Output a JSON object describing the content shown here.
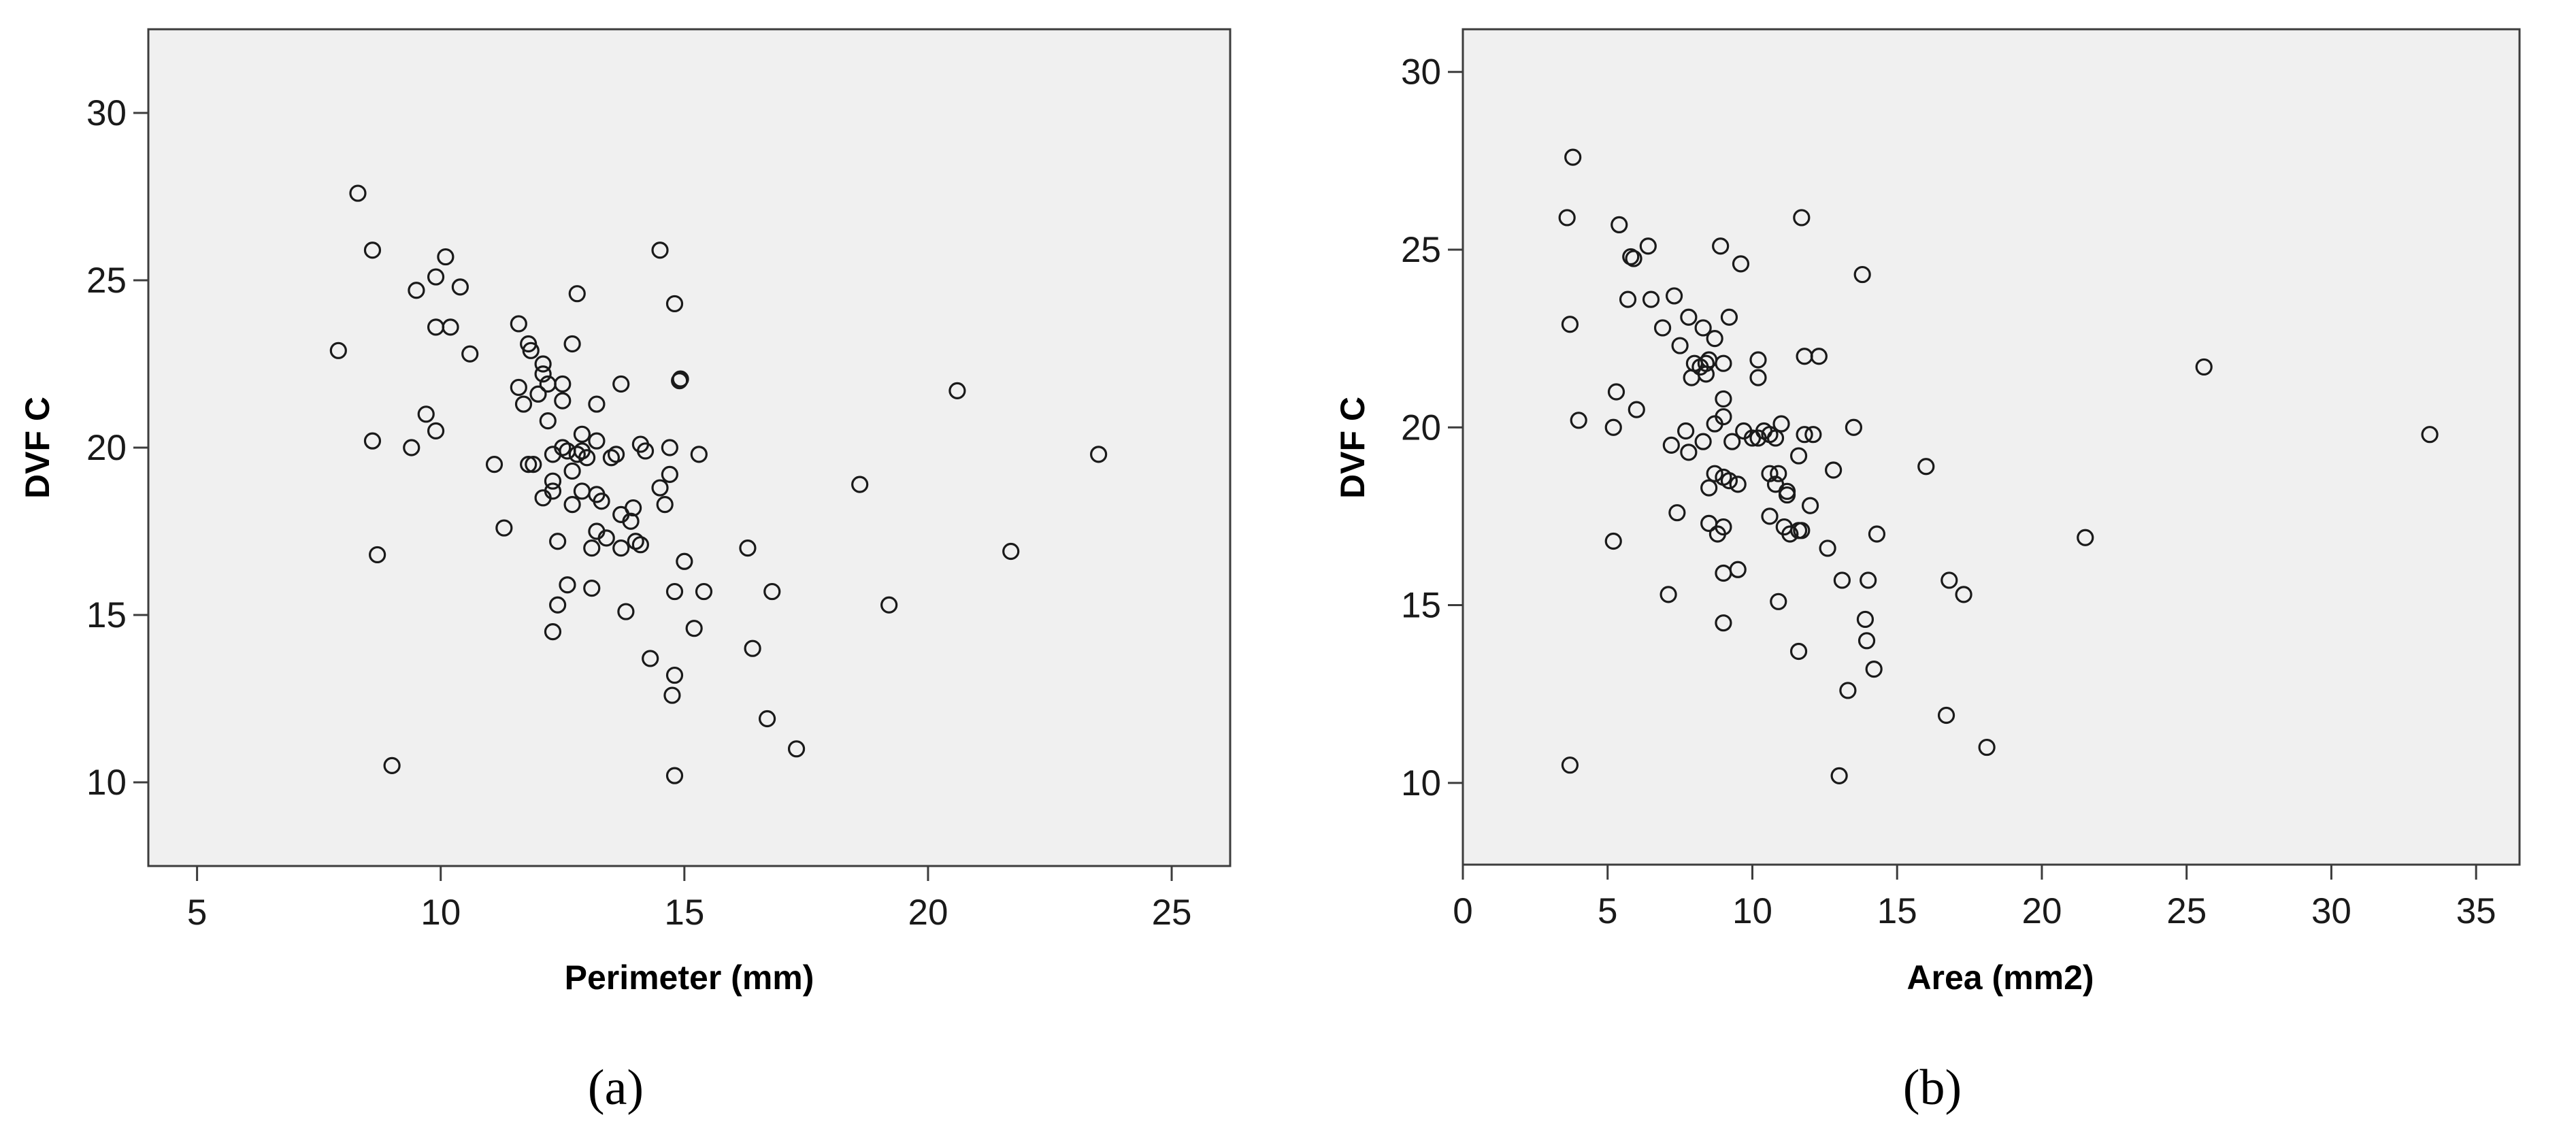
{
  "chart_data": [
    {
      "type": "scatter",
      "panel_label": "(a)",
      "xlabel": "Perimeter (mm)",
      "ylabel": "DVF C",
      "xlim": [
        4,
        26.2
      ],
      "ylim": [
        7.5,
        32.5
      ],
      "xticks": [
        5,
        10,
        15,
        20,
        25
      ],
      "yticks": [
        10,
        15,
        20,
        25,
        30
      ],
      "grid": false,
      "marker": "open circle",
      "colors": {
        "plot_background": "#f0f0f0",
        "marker": "#1a1a1a"
      },
      "points": [
        [
          8.3,
          27.6
        ],
        [
          8.6,
          25.9
        ],
        [
          10.1,
          25.7
        ],
        [
          9.9,
          25.1
        ],
        [
          9.5,
          24.7
        ],
        [
          10.4,
          24.8
        ],
        [
          9.9,
          23.6
        ],
        [
          10.2,
          23.6
        ],
        [
          7.9,
          22.9
        ],
        [
          10.6,
          22.8
        ],
        [
          11.6,
          23.7
        ],
        [
          11.8,
          23.1
        ],
        [
          11.85,
          22.9
        ],
        [
          12.1,
          22.5
        ],
        [
          12.1,
          22.2
        ],
        [
          11.6,
          21.8
        ],
        [
          11.7,
          21.3
        ],
        [
          12.0,
          21.6
        ],
        [
          12.2,
          21.9
        ],
        [
          12.5,
          21.9
        ],
        [
          12.5,
          21.4
        ],
        [
          12.8,
          24.6
        ],
        [
          12.7,
          23.1
        ],
        [
          9.7,
          21.0
        ],
        [
          9.9,
          20.5
        ],
        [
          8.6,
          20.2
        ],
        [
          9.4,
          20.0
        ],
        [
          8.7,
          16.8
        ],
        [
          9.0,
          10.5
        ],
        [
          11.1,
          19.5
        ],
        [
          11.3,
          17.6
        ],
        [
          11.9,
          19.5
        ],
        [
          12.2,
          20.8
        ],
        [
          12.3,
          19.8
        ],
        [
          12.5,
          20.0
        ],
        [
          12.6,
          19.9
        ],
        [
          12.8,
          19.8
        ],
        [
          12.9,
          20.4
        ],
        [
          13.0,
          19.7
        ],
        [
          13.2,
          20.2
        ],
        [
          12.3,
          19.0
        ],
        [
          12.7,
          19.3
        ],
        [
          12.1,
          18.5
        ],
        [
          12.3,
          18.7
        ],
        [
          12.7,
          18.3
        ],
        [
          12.9,
          18.7
        ],
        [
          13.2,
          18.6
        ],
        [
          13.3,
          18.4
        ],
        [
          13.5,
          19.7
        ],
        [
          13.6,
          19.8
        ],
        [
          13.7,
          18.0
        ],
        [
          13.9,
          17.8
        ],
        [
          13.95,
          18.2
        ],
        [
          13.2,
          17.5
        ],
        [
          13.4,
          17.3
        ],
        [
          13.1,
          17.0
        ],
        [
          13.7,
          17.0
        ],
        [
          14.1,
          17.1
        ],
        [
          14.0,
          17.2
        ],
        [
          12.4,
          17.2
        ],
        [
          12.6,
          15.9
        ],
        [
          13.1,
          15.8
        ],
        [
          12.4,
          15.3
        ],
        [
          12.3,
          14.5
        ],
        [
          13.2,
          21.3
        ],
        [
          13.7,
          21.9
        ],
        [
          14.1,
          20.1
        ],
        [
          14.2,
          19.9
        ],
        [
          14.5,
          18.8
        ],
        [
          14.6,
          18.3
        ],
        [
          14.7,
          19.2
        ],
        [
          14.7,
          20.0
        ],
        [
          14.5,
          25.9
        ],
        [
          14.8,
          24.3
        ],
        [
          14.9,
          22.0
        ],
        [
          14.92,
          22.05
        ],
        [
          15.3,
          19.8
        ],
        [
          15.0,
          16.6
        ],
        [
          14.8,
          15.7
        ],
        [
          15.4,
          15.7
        ],
        [
          14.3,
          13.7
        ],
        [
          14.8,
          13.2
        ],
        [
          14.75,
          12.6
        ],
        [
          14.8,
          10.2
        ],
        [
          15.2,
          14.6
        ],
        [
          16.3,
          17.0
        ],
        [
          16.4,
          14.0
        ],
        [
          16.8,
          15.7
        ],
        [
          16.7,
          11.9
        ],
        [
          17.3,
          11.0
        ],
        [
          13.8,
          15.1
        ],
        [
          18.6,
          18.9
        ],
        [
          19.2,
          15.3
        ],
        [
          20.6,
          21.7
        ],
        [
          21.7,
          16.9
        ],
        [
          23.5,
          19.8
        ],
        [
          11.8,
          19.5
        ],
        [
          12.9,
          19.9
        ]
      ]
    },
    {
      "type": "scatter",
      "panel_label": "(b)",
      "xlabel": "Area (mm2)",
      "ylabel": "DVF C",
      "xlim": [
        0,
        36.5
      ],
      "ylim": [
        7.7,
        31.2
      ],
      "xticks": [
        0,
        5,
        10,
        15,
        20,
        25,
        30,
        35
      ],
      "yticks": [
        10,
        15,
        20,
        25,
        30
      ],
      "grid": false,
      "marker": "open circle",
      "colors": {
        "plot_background": "#f0f0f0",
        "marker": "#1a1a1a"
      },
      "points": [
        [
          3.8,
          27.6
        ],
        [
          3.6,
          25.9
        ],
        [
          5.4,
          25.7
        ],
        [
          6.4,
          25.1
        ],
        [
          5.8,
          24.8
        ],
        [
          5.9,
          24.75
        ],
        [
          8.9,
          25.1
        ],
        [
          9.6,
          24.6
        ],
        [
          11.7,
          25.9
        ],
        [
          13.8,
          24.3
        ],
        [
          5.7,
          23.6
        ],
        [
          6.5,
          23.6
        ],
        [
          7.3,
          23.7
        ],
        [
          3.7,
          22.9
        ],
        [
          7.8,
          23.1
        ],
        [
          8.3,
          22.8
        ],
        [
          9.2,
          23.1
        ],
        [
          6.9,
          22.8
        ],
        [
          7.5,
          22.3
        ],
        [
          8.7,
          22.5
        ],
        [
          8.0,
          21.8
        ],
        [
          8.2,
          21.7
        ],
        [
          8.4,
          21.8
        ],
        [
          7.9,
          21.4
        ],
        [
          8.4,
          21.5
        ],
        [
          8.5,
          21.9
        ],
        [
          9.0,
          21.8
        ],
        [
          10.2,
          21.9
        ],
        [
          10.2,
          21.4
        ],
        [
          11.8,
          22.0
        ],
        [
          12.3,
          22.0
        ],
        [
          5.3,
          21.0
        ],
        [
          4.0,
          20.2
        ],
        [
          5.2,
          20.0
        ],
        [
          6.0,
          20.5
        ],
        [
          7.2,
          19.5
        ],
        [
          7.7,
          19.9
        ],
        [
          7.8,
          19.3
        ],
        [
          8.3,
          19.6
        ],
        [
          8.7,
          20.1
        ],
        [
          9.0,
          20.3
        ],
        [
          9.0,
          20.8
        ],
        [
          9.3,
          19.6
        ],
        [
          9.7,
          19.9
        ],
        [
          10.0,
          19.7
        ],
        [
          10.2,
          19.7
        ],
        [
          10.4,
          19.9
        ],
        [
          10.6,
          19.8
        ],
        [
          10.8,
          19.7
        ],
        [
          11.0,
          20.1
        ],
        [
          11.8,
          19.8
        ],
        [
          12.1,
          19.8
        ],
        [
          13.5,
          20.0
        ],
        [
          16.0,
          18.9
        ],
        [
          11.6,
          19.2
        ],
        [
          9.5,
          18.4
        ],
        [
          9.2,
          18.5
        ],
        [
          9.0,
          18.6
        ],
        [
          8.7,
          18.7
        ],
        [
          8.5,
          18.3
        ],
        [
          10.6,
          18.7
        ],
        [
          10.8,
          18.4
        ],
        [
          10.9,
          18.7
        ],
        [
          11.2,
          18.1
        ],
        [
          11.2,
          18.2
        ],
        [
          12.0,
          17.8
        ],
        [
          12.8,
          18.8
        ],
        [
          7.4,
          17.6
        ],
        [
          8.5,
          17.3
        ],
        [
          8.8,
          17.0
        ],
        [
          9.0,
          17.2
        ],
        [
          10.6,
          17.5
        ],
        [
          11.1,
          17.2
        ],
        [
          11.3,
          17.0
        ],
        [
          11.6,
          17.1
        ],
        [
          11.7,
          17.1
        ],
        [
          12.6,
          16.6
        ],
        [
          14.3,
          17.0
        ],
        [
          5.2,
          16.8
        ],
        [
          7.1,
          15.3
        ],
        [
          9.0,
          15.9
        ],
        [
          9.5,
          16.0
        ],
        [
          10.9,
          15.1
        ],
        [
          9.0,
          14.5
        ],
        [
          13.1,
          15.7
        ],
        [
          14.0,
          15.7
        ],
        [
          16.8,
          15.7
        ],
        [
          17.3,
          15.3
        ],
        [
          13.9,
          14.6
        ],
        [
          13.95,
          14.0
        ],
        [
          11.6,
          13.7
        ],
        [
          14.2,
          13.2
        ],
        [
          13.3,
          12.6
        ],
        [
          16.7,
          11.9
        ],
        [
          18.1,
          11.0
        ],
        [
          3.7,
          10.5
        ],
        [
          13.0,
          10.2
        ],
        [
          21.5,
          16.9
        ],
        [
          25.6,
          21.7
        ],
        [
          33.4,
          19.8
        ]
      ]
    }
  ]
}
